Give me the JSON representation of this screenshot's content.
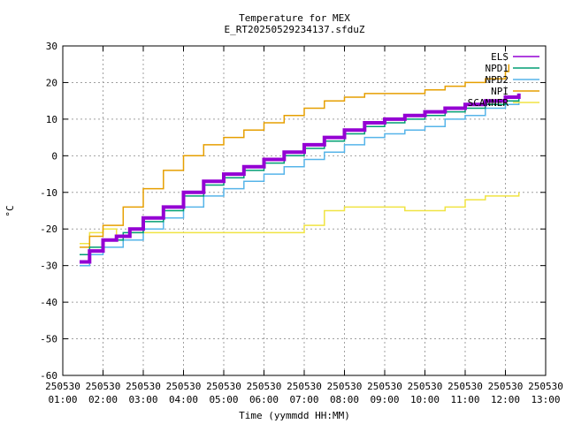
{
  "chart_data": {
    "type": "line",
    "title": "Temperature for MEX",
    "subtitle": "E_RT20250529234137.sfduZ",
    "xlabel": "Time (yymmdd HH:MM)",
    "ylabel": "°C",
    "ylim": [
      -60,
      30
    ],
    "yticks": [
      -60,
      -50,
      -40,
      -30,
      -20,
      -10,
      0,
      10,
      20,
      30
    ],
    "xlim": [
      "250530 01:00",
      "250530 13:00"
    ],
    "xticks": [
      {
        "date": "250530",
        "time": "01:00"
      },
      {
        "date": "250530",
        "time": "02:00"
      },
      {
        "date": "250530",
        "time": "03:00"
      },
      {
        "date": "250530",
        "time": "04:00"
      },
      {
        "date": "250530",
        "time": "05:00"
      },
      {
        "date": "250530",
        "time": "06:00"
      },
      {
        "date": "250530",
        "time": "07:00"
      },
      {
        "date": "250530",
        "time": "08:00"
      },
      {
        "date": "250530",
        "time": "09:00"
      },
      {
        "date": "250530",
        "time": "10:00"
      },
      {
        "date": "250530",
        "time": "11:00"
      },
      {
        "date": "250530",
        "time": "12:00"
      },
      {
        "date": "250530",
        "time": "13:00"
      }
    ],
    "grid": true,
    "legend_position": "top-right",
    "series": [
      {
        "name": "ELS",
        "color": "#9400d3",
        "x": [
          "01:25",
          "01:40",
          "02:00",
          "02:20",
          "02:40",
          "03:00",
          "03:30",
          "04:00",
          "04:30",
          "05:00",
          "05:30",
          "06:00",
          "06:30",
          "07:00",
          "07:30",
          "08:00",
          "08:30",
          "09:00",
          "09:30",
          "10:00",
          "10:30",
          "11:00",
          "11:30",
          "12:00",
          "12:20"
        ],
        "y": [
          -29,
          -26,
          -23,
          -22,
          -20,
          -17,
          -14,
          -10,
          -7,
          -5,
          -3,
          -1,
          1,
          3,
          5,
          7,
          9,
          10,
          11,
          12,
          13,
          14,
          15,
          16,
          17
        ]
      },
      {
        "name": "NPD1",
        "color": "#009e73",
        "x": [
          "01:25",
          "01:40",
          "02:00",
          "02:30",
          "03:00",
          "03:30",
          "04:00",
          "04:30",
          "05:00",
          "05:30",
          "06:00",
          "06:30",
          "07:00",
          "07:30",
          "08:00",
          "08:30",
          "09:00",
          "09:30",
          "10:00",
          "10:30",
          "11:00",
          "11:30",
          "12:00",
          "12:20"
        ],
        "y": [
          -27,
          -25,
          -23,
          -21,
          -18,
          -15,
          -11,
          -8,
          -6,
          -4,
          -2,
          0,
          2,
          4,
          6,
          8,
          9,
          10,
          11,
          12,
          13,
          14,
          15,
          17
        ]
      },
      {
        "name": "NPD2",
        "color": "#56b4e9",
        "x": [
          "01:25",
          "01:40",
          "02:00",
          "02:30",
          "03:00",
          "03:30",
          "04:00",
          "04:30",
          "05:00",
          "05:30",
          "06:00",
          "06:30",
          "07:00",
          "07:30",
          "08:00",
          "08:30",
          "09:00",
          "09:30",
          "10:00",
          "10:30",
          "11:00",
          "11:30",
          "12:00",
          "12:20"
        ],
        "y": [
          -30,
          -27,
          -25,
          -23,
          -20,
          -17,
          -14,
          -11,
          -9,
          -7,
          -5,
          -3,
          -1,
          1,
          3,
          5,
          6,
          7,
          8,
          10,
          11,
          13,
          14,
          16
        ]
      },
      {
        "name": "NPI",
        "color": "#e69f00",
        "x": [
          "01:25",
          "01:40",
          "02:00",
          "02:30",
          "03:00",
          "03:30",
          "04:00",
          "04:30",
          "05:00",
          "05:30",
          "06:00",
          "06:30",
          "07:00",
          "07:30",
          "08:00",
          "08:30",
          "09:00",
          "09:30",
          "10:00",
          "10:30",
          "11:00",
          "11:30",
          "12:00",
          "12:05"
        ],
        "y": [
          -25,
          -22,
          -19,
          -14,
          -9,
          -4,
          0,
          3,
          5,
          7,
          9,
          11,
          13,
          15,
          16,
          17,
          17,
          17,
          18,
          19,
          20,
          21,
          23,
          25
        ]
      },
      {
        "name": "SCANNER",
        "color": "#f0e442",
        "x": [
          "01:25",
          "01:40",
          "02:00",
          "02:20",
          "02:40",
          "03:00",
          "04:00",
          "05:00",
          "05:30",
          "06:00",
          "06:45",
          "07:00",
          "07:30",
          "08:00",
          "08:30",
          "09:00",
          "09:30",
          "10:00",
          "10:30",
          "11:00",
          "11:30",
          "12:00",
          "12:20"
        ],
        "y": [
          -24,
          -21,
          -20,
          -22,
          -21,
          -21,
          -21,
          -21,
          -21,
          -21,
          -21,
          -19,
          -15,
          -14,
          -14,
          -14,
          -15,
          -15,
          -14,
          -12,
          -11,
          -11,
          -10
        ]
      }
    ]
  }
}
